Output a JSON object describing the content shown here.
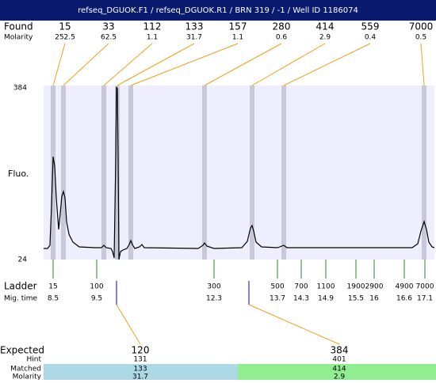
{
  "header": {
    "title": "refseq_DGUOK.F1 / refseq_DGUOK.R1 / BRN 319 / -1 / Well ID 1186074"
  },
  "found": {
    "label": "Found",
    "molarity_label": "Molarity",
    "sizes": [
      15,
      33,
      112,
      133,
      157,
      280,
      414,
      559,
      7000
    ],
    "molarity": [
      252.5,
      62.5,
      1.1,
      31.7,
      1.1,
      0.6,
      2.9,
      0.4,
      0.5
    ]
  },
  "plot": {
    "y_label": "Fluo.",
    "y_top": 384,
    "y_bottom": 24
  },
  "ladder": {
    "label": "Ladder",
    "time_label": "Mig. time",
    "sizes": [
      15,
      100,
      300,
      500,
      700,
      1100,
      1900,
      2900,
      4900,
      7000
    ],
    "times": [
      8.5,
      9.5,
      12.3,
      13.7,
      14.3,
      14.9,
      15.5,
      16,
      16.6,
      17.1
    ]
  },
  "expected": {
    "label": "Expected",
    "hint_label": "Hint",
    "matched_label": "Matched",
    "molarity_label": "Molarity",
    "columns": [
      {
        "expected": 120,
        "hint": 131,
        "matched": 133,
        "molarity": 31.7
      },
      {
        "expected": 384,
        "hint": 401,
        "matched": 414,
        "molarity": 2.9
      }
    ]
  }
}
